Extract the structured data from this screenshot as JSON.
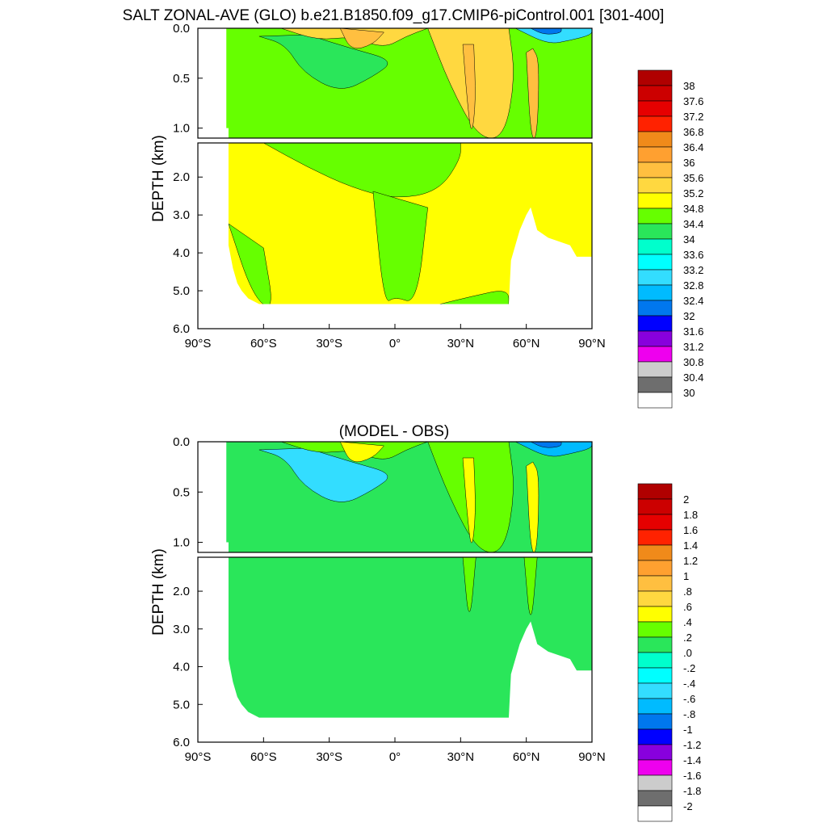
{
  "figure_title": "SALT ZONAL-AVE (GLO) b.e21.B1850.f09_g17.CMIP6-piControl.001 [301-400]",
  "chart_data": [
    {
      "type": "heatmap",
      "name": "model",
      "title": "",
      "xlabel": "",
      "ylabel": "DEPTH (km)",
      "x_ticks": [
        "90°S",
        "60°S",
        "30°S",
        "0°",
        "30°N",
        "60°N",
        "90°N"
      ],
      "x_range": [
        -90,
        90
      ],
      "y_ticks_upper": [
        "0.0",
        "0.5",
        "1.0"
      ],
      "y_ticks_lower": [
        "2.0",
        "3.0",
        "4.0",
        "5.0",
        "6.0"
      ],
      "y_range_upper_km": [
        0,
        1.1
      ],
      "y_range_lower_km": [
        1.1,
        6.0
      ],
      "bottom_depth_km": [
        [
          -77,
          1.0
        ],
        [
          -76,
          3.8
        ],
        [
          -74,
          4.4
        ],
        [
          -72,
          4.8
        ],
        [
          -70,
          5.0
        ],
        [
          -67,
          5.2
        ],
        [
          -62,
          5.35
        ],
        [
          -50,
          5.35
        ],
        [
          -30,
          5.35
        ],
        [
          0,
          5.35
        ],
        [
          30,
          5.35
        ],
        [
          52,
          5.35
        ],
        [
          53,
          4.2
        ],
        [
          57,
          3.4
        ],
        [
          60,
          3.0
        ],
        [
          62,
          2.8
        ],
        [
          65,
          3.4
        ],
        [
          70,
          3.6
        ],
        [
          80,
          3.8
        ],
        [
          83,
          4.1
        ],
        [
          90,
          4.1
        ]
      ],
      "colorbar_labels": [
        "38",
        "37.6",
        "37.2",
        "36.8",
        "36.4",
        "36",
        "35.6",
        "35.2",
        "34.8",
        "34.4",
        "34",
        "33.6",
        "33.2",
        "32.8",
        "32.4",
        "32",
        "31.6",
        "31.2",
        "30.8",
        "30.4",
        "30"
      ],
      "colorbar_colors": [
        "#b00000",
        "#cc0000",
        "#e60000",
        "#ff2200",
        "#f08a1a",
        "#ffa030",
        "#ffbf40",
        "#ffd840",
        "#ffff00",
        "#66ff00",
        "#2ae65a",
        "#00ffcc",
        "#00ffff",
        "#33ddff",
        "#00bbff",
        "#0077ee",
        "#0000ff",
        "#8800dd",
        "#ee00ee",
        "#cccccc",
        "#6e6e6e",
        "#ffffff"
      ]
    },
    {
      "type": "heatmap",
      "name": "difference",
      "title": "(MODEL - OBS)",
      "xlabel": "",
      "ylabel": "DEPTH (km)",
      "x_ticks": [
        "90°S",
        "60°S",
        "30°S",
        "0°",
        "30°N",
        "60°N",
        "90°N"
      ],
      "x_range": [
        -90,
        90
      ],
      "y_ticks_upper": [
        "0.0",
        "0.5",
        "1.0"
      ],
      "y_ticks_lower": [
        "2.0",
        "3.0",
        "4.0",
        "5.0",
        "6.0"
      ],
      "y_range_upper_km": [
        0,
        1.1
      ],
      "y_range_lower_km": [
        1.1,
        6.0
      ],
      "colorbar_labels": [
        "2",
        "1.8",
        "1.6",
        "1.4",
        "1.2",
        "1",
        ".8",
        ".6",
        ".4",
        ".2",
        ".0",
        "-.2",
        "-.4",
        "-.6",
        "-.8",
        "-1",
        "-1.2",
        "-1.4",
        "-1.6",
        "-1.8",
        "-2"
      ],
      "colorbar_colors": [
        "#b00000",
        "#cc0000",
        "#e60000",
        "#ff2200",
        "#f08a1a",
        "#ffa030",
        "#ffbf40",
        "#ffd840",
        "#ffff00",
        "#66ff00",
        "#2ae65a",
        "#00ffcc",
        "#00ffff",
        "#33ddff",
        "#00bbff",
        "#0077ee",
        "#0000ff",
        "#8800dd",
        "#ee00ee",
        "#cccccc",
        "#6e6e6e",
        "#ffffff"
      ]
    }
  ]
}
